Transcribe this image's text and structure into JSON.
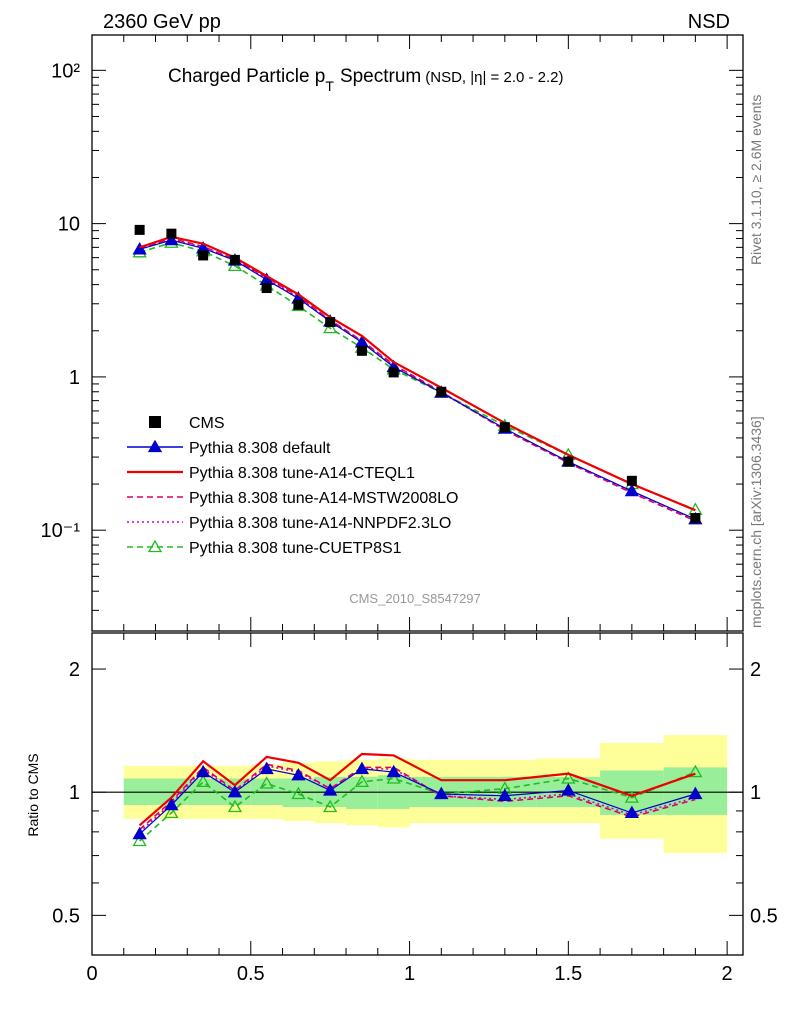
{
  "header": {
    "left": "2360 GeV pp",
    "right": "NSD"
  },
  "title": {
    "main": "Charged Particle p",
    "sub": "T",
    "rest": "Spectrum",
    "note": "(NSD, |η| = 2.0 - 2.2)"
  },
  "side_labels": {
    "rivet": "Rivet 3.1.10, ≥ 2.6M events",
    "mcplots": "mcplots.cern.ch [arXiv:1306.3436]"
  },
  "watermark": "CMS_2010_S8547297",
  "upper_axis": {
    "tick_labels": [
      "10⁻¹",
      "1",
      "10",
      "10²"
    ]
  },
  "lower_axis": {
    "ylabel": "Ratio to CMS",
    "tick_labels": [
      "0.5",
      "1",
      "2"
    ]
  },
  "x_axis": {
    "tick_labels": [
      "0",
      "0.5",
      "1",
      "1.5",
      "2"
    ]
  },
  "colors": {
    "data": "#000000",
    "default": "#0000cc",
    "cteql1": "#ee0000",
    "mstw": "#dd0066",
    "nnpdf": "#cc00cc",
    "cuetp": "#22bb22",
    "band_inner": "#99ee99",
    "band_outer": "#ffff99"
  },
  "chart_data": [
    {
      "type": "line",
      "panel": "spectrum",
      "title": "Charged Particle pT Spectrum (NSD, |η| = 2.0 - 2.2)",
      "xlim": [
        0,
        2.05
      ],
      "ylim": [
        0.022,
        170
      ],
      "yscale": "log",
      "x": [
        0.15,
        0.25,
        0.35,
        0.45,
        0.55,
        0.65,
        0.75,
        0.85,
        0.95,
        1.1,
        1.3,
        1.5,
        1.7,
        1.9
      ],
      "legend_position": "lower-left",
      "series": [
        {
          "name": "CMS",
          "style": "markers",
          "color": "#000000",
          "values": [
            9.1,
            8.6,
            6.2,
            5.8,
            3.8,
            2.95,
            2.28,
            1.48,
            1.07,
            0.8,
            0.47,
            0.28,
            0.21,
            0.12
          ]
        },
        {
          "name": "Pythia 8.308 default",
          "style": "line-triangle",
          "color": "#0000cc",
          "values": [
            6.8,
            7.8,
            6.9,
            5.75,
            4.3,
            3.25,
            2.3,
            1.68,
            1.16,
            0.79,
            0.46,
            0.28,
            0.18,
            0.118
          ]
        },
        {
          "name": "Pythia 8.308 tune-A14-CTEQL1",
          "style": "line",
          "color": "#ee0000",
          "values": [
            7.0,
            8.2,
            7.4,
            6.0,
            4.55,
            3.45,
            2.45,
            1.85,
            1.25,
            0.85,
            0.5,
            0.31,
            0.2,
            0.135
          ]
        },
        {
          "name": "Pythia 8.308 tune-A14-MSTW2008LO",
          "style": "dashed",
          "color": "#dd0066",
          "values": [
            6.9,
            8.0,
            7.1,
            5.85,
            4.45,
            3.35,
            2.35,
            1.72,
            1.2,
            0.8,
            0.45,
            0.275,
            0.175,
            0.115
          ]
        },
        {
          "name": "Pythia 8.308 tune-A14-NNPDF2.3LO",
          "style": "dotted",
          "color": "#cc00cc",
          "values": [
            6.85,
            7.9,
            7.0,
            5.8,
            4.4,
            3.3,
            2.33,
            1.7,
            1.18,
            0.79,
            0.455,
            0.278,
            0.178,
            0.117
          ]
        },
        {
          "name": "Pythia 8.308 tune-CUETP8S1",
          "style": "dashed-triangle",
          "color": "#22bb22",
          "values": [
            6.5,
            7.5,
            6.6,
            5.3,
            3.95,
            2.9,
            2.08,
            1.55,
            1.12,
            0.79,
            0.48,
            0.31,
            0.2,
            0.136
          ]
        }
      ]
    },
    {
      "type": "line",
      "panel": "ratio",
      "ylabel": "Ratio to CMS",
      "xlim": [
        0,
        2.05
      ],
      "ylim": [
        0.4,
        2.45
      ],
      "yscale": "log",
      "x": [
        0.15,
        0.25,
        0.35,
        0.45,
        0.55,
        0.65,
        0.75,
        0.85,
        0.95,
        1.1,
        1.3,
        1.5,
        1.7,
        1.9
      ],
      "bands": {
        "edges": [
          0.1,
          0.2,
          0.3,
          0.4,
          0.5,
          0.6,
          0.7,
          0.8,
          0.9,
          1.0,
          1.2,
          1.4,
          1.6,
          1.8,
          2.0
        ],
        "inner_low": [
          0.93,
          0.93,
          0.93,
          0.93,
          0.93,
          0.92,
          0.92,
          0.91,
          0.91,
          0.92,
          0.92,
          0.92,
          0.88,
          0.88
        ],
        "inner_high": [
          1.08,
          1.08,
          1.08,
          1.08,
          1.08,
          1.08,
          1.09,
          1.09,
          1.1,
          1.09,
          1.09,
          1.09,
          1.13,
          1.15
        ],
        "outer_low": [
          0.86,
          0.86,
          0.86,
          0.86,
          0.86,
          0.85,
          0.84,
          0.83,
          0.82,
          0.84,
          0.84,
          0.84,
          0.77,
          0.71
        ],
        "outer_high": [
          1.16,
          1.16,
          1.16,
          1.16,
          1.17,
          1.18,
          1.19,
          1.2,
          1.21,
          1.2,
          1.2,
          1.21,
          1.32,
          1.38
        ]
      },
      "series": [
        {
          "name": "Pythia 8.308 default",
          "style": "line-triangle",
          "color": "#0000cc",
          "values": [
            0.79,
            0.93,
            1.12,
            1.0,
            1.14,
            1.1,
            1.01,
            1.14,
            1.12,
            0.99,
            0.98,
            1.01,
            0.89,
            0.99
          ]
        },
        {
          "name": "Pythia 8.308 tune-A14-CTEQL1",
          "style": "line",
          "color": "#ee0000",
          "values": [
            0.83,
            0.97,
            1.19,
            1.04,
            1.22,
            1.18,
            1.07,
            1.24,
            1.23,
            1.07,
            1.07,
            1.11,
            0.98,
            1.11
          ]
        },
        {
          "name": "Pythia 8.308 tune-A14-MSTW2008LO",
          "style": "dashed",
          "color": "#dd0066",
          "values": [
            0.81,
            0.95,
            1.15,
            1.01,
            1.17,
            1.13,
            1.02,
            1.15,
            1.15,
            0.98,
            0.95,
            0.98,
            0.87,
            0.96
          ]
        },
        {
          "name": "Pythia 8.308 tune-A14-NNPDF2.3LO",
          "style": "dotted",
          "color": "#cc00cc",
          "values": [
            0.8,
            0.94,
            1.14,
            1.0,
            1.16,
            1.12,
            1.02,
            1.14,
            1.14,
            0.98,
            0.96,
            0.99,
            0.88,
            0.97
          ]
        },
        {
          "name": "Pythia 8.308 tune-CUETP8S1",
          "style": "dashed-triangle",
          "color": "#22bb22",
          "values": [
            0.76,
            0.89,
            1.06,
            0.92,
            1.05,
            0.99,
            0.92,
            1.06,
            1.08,
            0.99,
            1.02,
            1.08,
            0.97,
            1.12
          ]
        }
      ]
    }
  ]
}
